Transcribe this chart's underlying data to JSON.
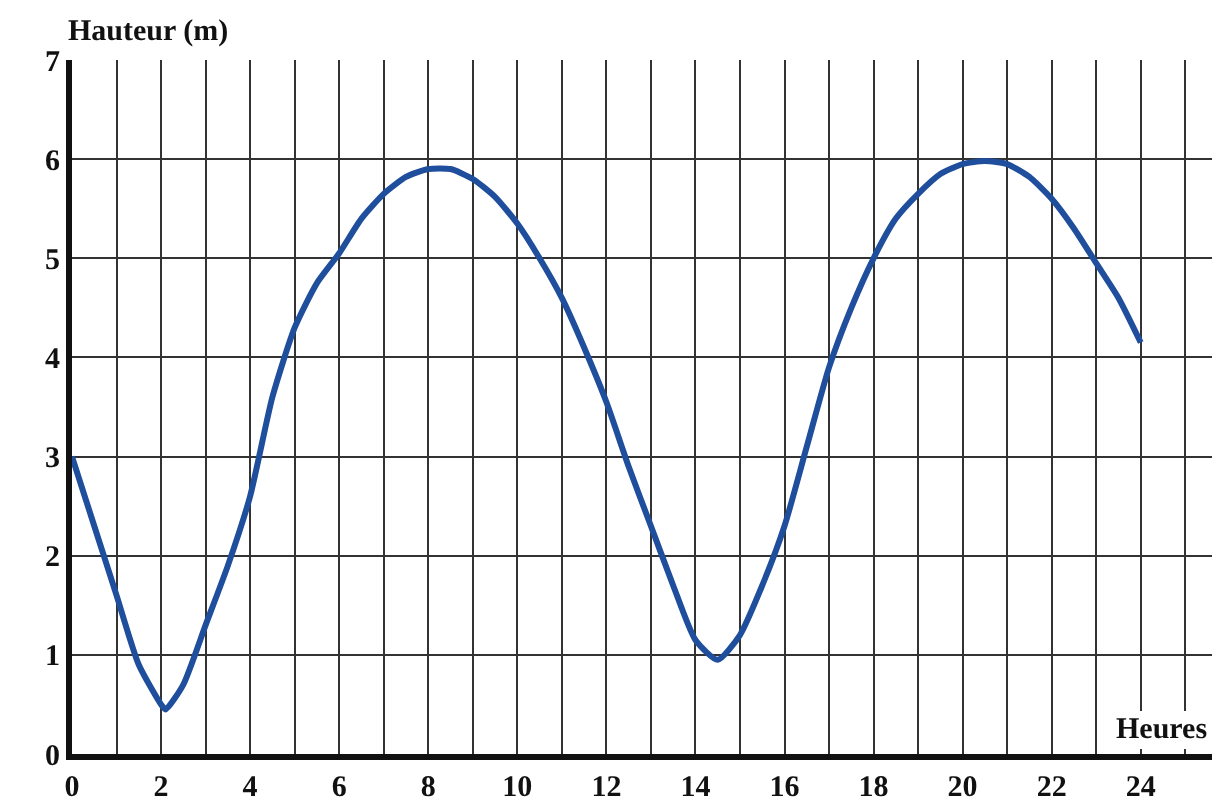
{
  "chart_data": {
    "type": "line",
    "xlabel": "Heures",
    "ylabel": "Hauteur (m)",
    "x": [
      0,
      0.5,
      1,
      1.5,
      2,
      2.1,
      2.5,
      3,
      3.5,
      4,
      4.5,
      5,
      5.5,
      6,
      6.5,
      7,
      7.5,
      8,
      8.5,
      9,
      9.5,
      10,
      10.5,
      11,
      11.5,
      12,
      12.5,
      13,
      13.5,
      14,
      14.5,
      15,
      15.5,
      16,
      16.5,
      17,
      17.5,
      18,
      18.5,
      19,
      19.5,
      20,
      20.5,
      21,
      21.5,
      22,
      22.5,
      23,
      23.5,
      24
    ],
    "series": [
      {
        "color": "#1f4e9c",
        "values": [
          3,
          2.3,
          1.6,
          0.9,
          0.5,
          0.45,
          0.7,
          1.3,
          1.9,
          2.6,
          3.6,
          4.3,
          4.75,
          5.05,
          5.4,
          5.65,
          5.82,
          5.9,
          5.9,
          5.8,
          5.62,
          5.35,
          5.0,
          4.6,
          4.1,
          3.55,
          2.9,
          2.3,
          1.7,
          1.15,
          0.95,
          1.2,
          1.7,
          2.3,
          3.1,
          3.9,
          4.5,
          5.0,
          5.4,
          5.65,
          5.85,
          5.95,
          5.98,
          5.95,
          5.82,
          5.6,
          5.3,
          4.95,
          4.6,
          4.15
        ]
      }
    ],
    "xlim": [
      0,
      25.6
    ],
    "xticks": [
      0,
      {
        "value": 1,
        "label": null
      },
      2,
      {
        "value": 3,
        "label": null
      },
      4,
      {
        "value": 5,
        "label": null
      },
      6,
      {
        "value": 7,
        "label": null
      },
      8,
      {
        "value": 9,
        "label": null
      },
      10,
      {
        "value": 11,
        "label": null
      },
      12,
      {
        "value": 13,
        "label": null
      },
      14,
      {
        "value": 15,
        "label": null
      },
      16,
      {
        "value": 17,
        "label": null
      },
      18,
      {
        "value": 19,
        "label": null
      },
      20,
      {
        "value": 21,
        "label": null
      },
      22,
      {
        "value": 23,
        "label": null
      },
      24,
      {
        "value": 25,
        "label": null
      }
    ],
    "ylim": [
      0,
      7
    ],
    "yticks": [
      0,
      1,
      2,
      3,
      4,
      5,
      6,
      7
    ],
    "grid": true,
    "marker": "none",
    "line_style": "solid"
  }
}
